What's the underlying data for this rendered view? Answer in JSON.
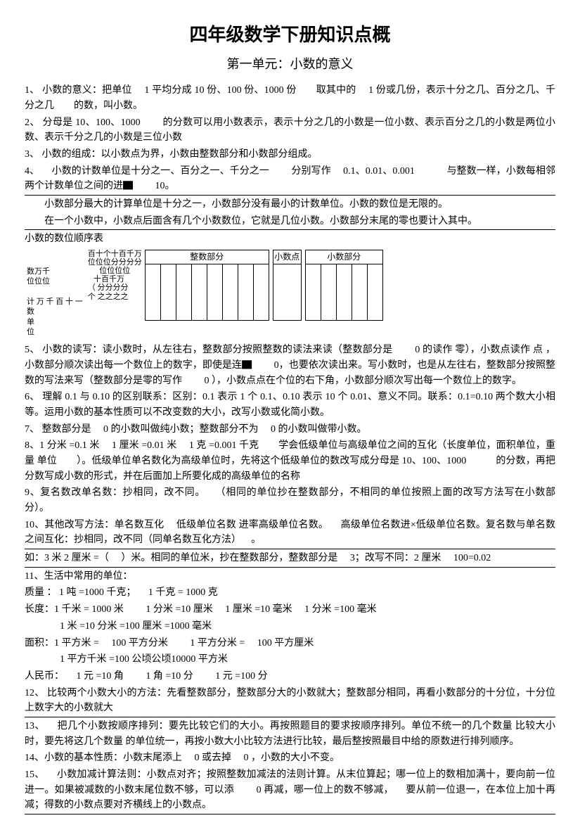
{
  "title": "四年级数学下册知识点概",
  "subtitle": "第一单元：小数的意义",
  "items": {
    "i1": "1、 小数的意义：把单位  1 平均分成 10 份、100 份、1000 份  取其中的  1 份或几份，表示十分之几、百分之几、千分之几  的数，叫小数。",
    "i2": "2、 分母是 10、100、1000   的分数可以用小数表示，表示十分之几的小数是一位小数、表示百分之几的小数是两位小数、表示千分之几的小数是三位小数",
    "i3": "3、 小数的组成：以小数点为界，小数由整数部分和小数部分组成。",
    "i4": "4、  小数的计数单位是十分之一、百分之一、千分之一   分别写作  0.1、0.01、0.001    与整数一样，小数每相邻两个计数单位之间的进▇   10。",
    "i4a": "小数部分最大的计算单位是十分之一，小数部分没有最小的计数单位。小数的数位是无限的。",
    "i4b": "在一个小数中，小数点后面含有几个小数数位，它就是几位小数。小数部分末尾的零也要计入其中。",
    "tcap": "小数的数位顺序表",
    "i5": "5、 小数的读写：读小数时，从左往右，整数部分按照整数的读法来读（整数部分是   0 的读作 零），小数点读作 点 ，小数部分顺次读出每一个数位上的数字，即使是连▇   0，也要依次读出来。写小数时，也是从左往右，整数部分按照整数的写法来写（整数部分是零的写作   0 ），小数点点在个位的右下角，小数部分顺次写出每一个数位上的数字。",
    "i6": "6、 理解 0.1 与 0.10 的区别联系：区别：0.1 表示 1 个 0.1、0.10 表示 10 个 0.01、意义不同。联系：0.1=0.10 两个数大小相等。运用小数的基本性质可以不改变数的大小，改写小数或化简小数。",
    "i7": "7、 整数部分是  0 的小数叫做纯小数；整数部分不为  0 的小数叫做带小数。",
    "i8": "8、1 分米 =0.1 米  1 厘米 =0.01 米  1 克 =0.001 千克  学会低级单位与高级单位之间的互化（长度单位，面积单位，重量 单位  ）。低级单位单名数化为高级单位时，先将这个低级单位的数改写成分母是 10、100、1000   的分数，再把分数写成小数的形式，并在后面加上所要化成的高级单位的名称",
    "i9": "9、复名数改单名数：抄相同，改不同。 （相同的单位抄在整数部分，不相同的单位按照上面的改写方法写在小数部分）。",
    "i10": "10、其他改写方法：单名数互化  低级单位名数 进率高级单位名数。  高级单位名数进×低级单位名数。复名数与单名数之间互化：抄相同，改不同（同单名数互化方法） 。",
    "i10a": "如：3 米 2 厘米 =（  ）米。相同的单位米，抄在整数部分，整数部分是  3；改写不同：2 厘米  100=0.02",
    "i11": "11、生活中常用的单位：",
    "i11a": "质量 ： 1 吨 =1000 千克；  1 千克 = 1000 克",
    "i11b": "长度：1 千米 = 1000 米   1 分米 =10 厘米  1 厘米 =10 毫米  1 分米 =100 毫米",
    "i11c": "1 米 =10 分米 =100 厘米 =1000 毫米",
    "i11d": "面积：1 平方米 =  100 平方分米   1 平方分米 =  100 平方厘米",
    "i11e": "1 平方千米 =100 公顷公顷10000 平方米",
    "i11f": "人民币：  1 元 =10 角   1 角 =10 分   1 元 =100 分",
    "i12": "12、 比较两个小数大小的方法：先看整数部分，整数部分大的小数就大；整数部分相同，再看小数部分的十分位，十分位上数字大的小数就大",
    "i13": "13、  把几个小数按顺序排列：要先比较它们的大小。再按照题目的要求按顺序排列。单位不统一的几个数量 比较大小时，要先将这几个数量 的单位统一，再按小数大小比较方法进行比较，最后整按照最目中给的原数进行排列顺序。",
    "i14": "14、小数的基本性质：小数末尾添上  0 或去掉  0 ，小数的大小不变。",
    "i15": "15、  小数加减计算法则：小数点对齐；按照整数加减法的法则计算。从末位算起；哪一位上的数相加满十，要向前一位进一。如果被减数的小数末尾位数不够，可以添   0 再减，哪一位上的数不够减，  要从前一位退一，在本位上加十再减；得数的小数点要对齐横线上的小数点。"
  },
  "table": {
    "headers": {
      "int": "整数部分",
      "point": "小数点",
      "dec": "小数部分"
    },
    "left_rows": [
      [
        "数万千",
        "",
        "",
        "",
        "",
        "",
        "百十个十百千万"
      ],
      [
        "位位位",
        "",
        "",
        "",
        "",
        "",
        "位位位分分分分"
      ],
      [
        "",
        "",
        "",
        "",
        "",
        "",
        "   位位位位"
      ],
      [
        "计万千 百 十 一",
        "十百千万"
      ],
      [
        "数",
        "（ 分分分分"
      ],
      [
        "单",
        "个 之之之之"
      ],
      [
        "位",
        ""
      ]
    ]
  }
}
